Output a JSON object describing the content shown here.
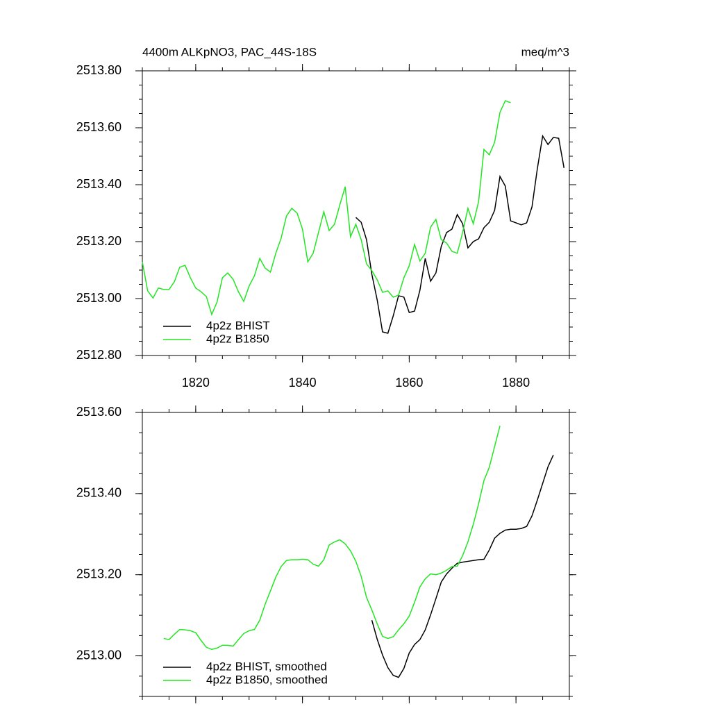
{
  "chart_data": [
    {
      "type": "line",
      "title": "4400m ALKpNO3, PAC_44S-18S",
      "units": "meq/m^3",
      "xlim": [
        1810,
        1890
      ],
      "xticks": [
        1820,
        1840,
        1860,
        1880
      ],
      "ylim": [
        2512.8,
        2513.8
      ],
      "yticks": [
        {
          "value": 2512.8,
          "label": "2512.80"
        },
        {
          "value": 2513.0,
          "label": "2513.00"
        },
        {
          "value": 2513.2,
          "label": "2513.20"
        },
        {
          "value": 2513.4,
          "label": "2513.40"
        },
        {
          "value": 2513.6,
          "label": "2513.60"
        },
        {
          "value": 2513.8,
          "label": "2513.80"
        }
      ],
      "legend": "lower left",
      "series": [
        {
          "name": "4p2z BHIST",
          "color": "#000000",
          "x": [
            1850,
            1851,
            1852,
            1853,
            1854,
            1855,
            1856,
            1857,
            1858,
            1859,
            1860,
            1861,
            1862,
            1863,
            1864,
            1865,
            1866,
            1867,
            1868,
            1869,
            1870,
            1871,
            1872,
            1873,
            1874,
            1875,
            1876,
            1877,
            1878,
            1879,
            1880,
            1881,
            1882,
            1883,
            1884,
            1885,
            1886,
            1887,
            1888,
            1889
          ],
          "values": [
            2513.285,
            2513.268,
            2513.207,
            2513.085,
            2512.995,
            2512.883,
            2512.878,
            2512.939,
            2513.01,
            2513.005,
            2512.951,
            2512.956,
            2513.029,
            2513.141,
            2513.061,
            2513.09,
            2513.183,
            2513.232,
            2513.244,
            2513.295,
            2513.263,
            2513.178,
            2513.2,
            2513.21,
            2513.249,
            2513.268,
            2513.31,
            2513.429,
            2513.395,
            2513.273,
            2513.266,
            2513.259,
            2513.266,
            2513.322,
            2513.456,
            2513.571,
            2513.541,
            2513.566,
            2513.563,
            2513.459
          ]
        },
        {
          "name": "4p2z B1850",
          "color": "#22e622",
          "x": [
            1810,
            1811,
            1812,
            1813,
            1814,
            1815,
            1816,
            1817,
            1818,
            1819,
            1820,
            1821,
            1822,
            1823,
            1824,
            1825,
            1826,
            1827,
            1828,
            1829,
            1830,
            1831,
            1832,
            1833,
            1834,
            1835,
            1836,
            1837,
            1838,
            1839,
            1840,
            1841,
            1842,
            1843,
            1844,
            1845,
            1846,
            1847,
            1848,
            1849,
            1850,
            1851,
            1852,
            1853,
            1854,
            1855,
            1856,
            1857,
            1858,
            1859,
            1860,
            1861,
            1862,
            1863,
            1864,
            1865,
            1866,
            1867,
            1868,
            1869,
            1870,
            1871,
            1872,
            1873,
            1874,
            1875,
            1876,
            1877,
            1878,
            1879
          ],
          "values": [
            2513.129,
            2513.027,
            2513.002,
            2513.037,
            2513.032,
            2513.032,
            2513.059,
            2513.11,
            2513.117,
            2513.073,
            2513.037,
            2513.024,
            2513.007,
            2512.944,
            2512.988,
            2513.073,
            2513.09,
            2513.068,
            2513.024,
            2512.99,
            2513.044,
            2513.08,
            2513.141,
            2513.107,
            2513.093,
            2513.159,
            2513.212,
            2513.29,
            2513.317,
            2513.3,
            2513.244,
            2513.129,
            2513.159,
            2513.232,
            2513.305,
            2513.239,
            2513.261,
            2513.329,
            2513.393,
            2513.217,
            2513.261,
            2513.207,
            2513.122,
            2513.098,
            2513.066,
            2513.022,
            2513.027,
            2513.005,
            2513.012,
            2513.073,
            2513.115,
            2513.19,
            2513.132,
            2513.159,
            2513.251,
            2513.278,
            2513.207,
            2513.195,
            2513.166,
            2513.159,
            2513.232,
            2513.317,
            2513.263,
            2513.341,
            2513.524,
            2513.505,
            2513.549,
            2513.654,
            2513.695,
            2513.688
          ]
        }
      ]
    },
    {
      "type": "line",
      "xlim": [
        1810,
        1890
      ],
      "xticks": [
        1820,
        1840,
        1860,
        1880
      ],
      "ylim": [
        2512.9,
        2513.6
      ],
      "yticks": [
        {
          "value": 2513.0,
          "label": "2513.00"
        },
        {
          "value": 2513.2,
          "label": "2513.20"
        },
        {
          "value": 2513.4,
          "label": "2513.40"
        },
        {
          "value": 2513.6,
          "label": "2513.60"
        }
      ],
      "legend": "lower left",
      "series": [
        {
          "name": "4p2z BHIST, smoothed",
          "color": "#000000",
          "x": [
            1853,
            1854,
            1855,
            1856,
            1857,
            1858,
            1859,
            1860,
            1861,
            1862,
            1863,
            1864,
            1865,
            1866,
            1867,
            1868,
            1869,
            1870,
            1871,
            1872,
            1873,
            1874,
            1875,
            1876,
            1877,
            1878,
            1879,
            1880,
            1881,
            1882,
            1883,
            1884,
            1885,
            1886,
            1887
          ],
          "values": [
            2513.088,
            2513.041,
            2513.002,
            2512.971,
            2512.952,
            2512.947,
            2512.969,
            2513.007,
            2513.028,
            2513.04,
            2513.064,
            2513.101,
            2513.141,
            2513.182,
            2513.202,
            2513.216,
            2513.228,
            2513.231,
            2513.233,
            2513.235,
            2513.237,
            2513.238,
            2513.261,
            2513.29,
            2513.302,
            2513.31,
            2513.312,
            2513.312,
            2513.314,
            2513.319,
            2513.345,
            2513.384,
            2513.425,
            2513.466,
            2513.495
          ]
        },
        {
          "name": "4p2z B1850, smoothed",
          "color": "#22e622",
          "x": [
            1814,
            1815,
            1816,
            1817,
            1818,
            1819,
            1820,
            1821,
            1822,
            1823,
            1824,
            1825,
            1826,
            1827,
            1828,
            1829,
            1830,
            1831,
            1832,
            1833,
            1834,
            1835,
            1836,
            1837,
            1838,
            1839,
            1840,
            1841,
            1842,
            1843,
            1844,
            1845,
            1846,
            1847,
            1848,
            1849,
            1850,
            1851,
            1852,
            1853,
            1854,
            1855,
            1856,
            1857,
            1858,
            1859,
            1860,
            1861,
            1862,
            1863,
            1864,
            1865,
            1866,
            1867,
            1868,
            1869,
            1870,
            1871,
            1872,
            1873,
            1874,
            1875,
            1876,
            1877
          ],
          "values": [
            2513.043,
            2513.04,
            2513.053,
            2513.065,
            2513.064,
            2513.062,
            2513.057,
            2513.038,
            2513.021,
            2513.016,
            2513.019,
            2513.026,
            2513.026,
            2513.024,
            2513.04,
            2513.055,
            2513.062,
            2513.065,
            2513.088,
            2513.127,
            2513.16,
            2513.194,
            2513.22,
            2513.235,
            2513.237,
            2513.237,
            2513.238,
            2513.237,
            2513.226,
            2513.221,
            2513.237,
            2513.273,
            2513.281,
            2513.286,
            2513.276,
            2513.259,
            2513.233,
            2513.196,
            2513.144,
            2513.113,
            2513.079,
            2513.048,
            2513.043,
            2513.047,
            2513.064,
            2513.079,
            2513.098,
            2513.132,
            2513.17,
            2513.19,
            2513.202,
            2513.2,
            2513.204,
            2513.211,
            2513.22,
            2513.221,
            2513.247,
            2513.281,
            2513.324,
            2513.375,
            2513.432,
            2513.465,
            2513.516,
            2513.567
          ]
        }
      ]
    }
  ]
}
